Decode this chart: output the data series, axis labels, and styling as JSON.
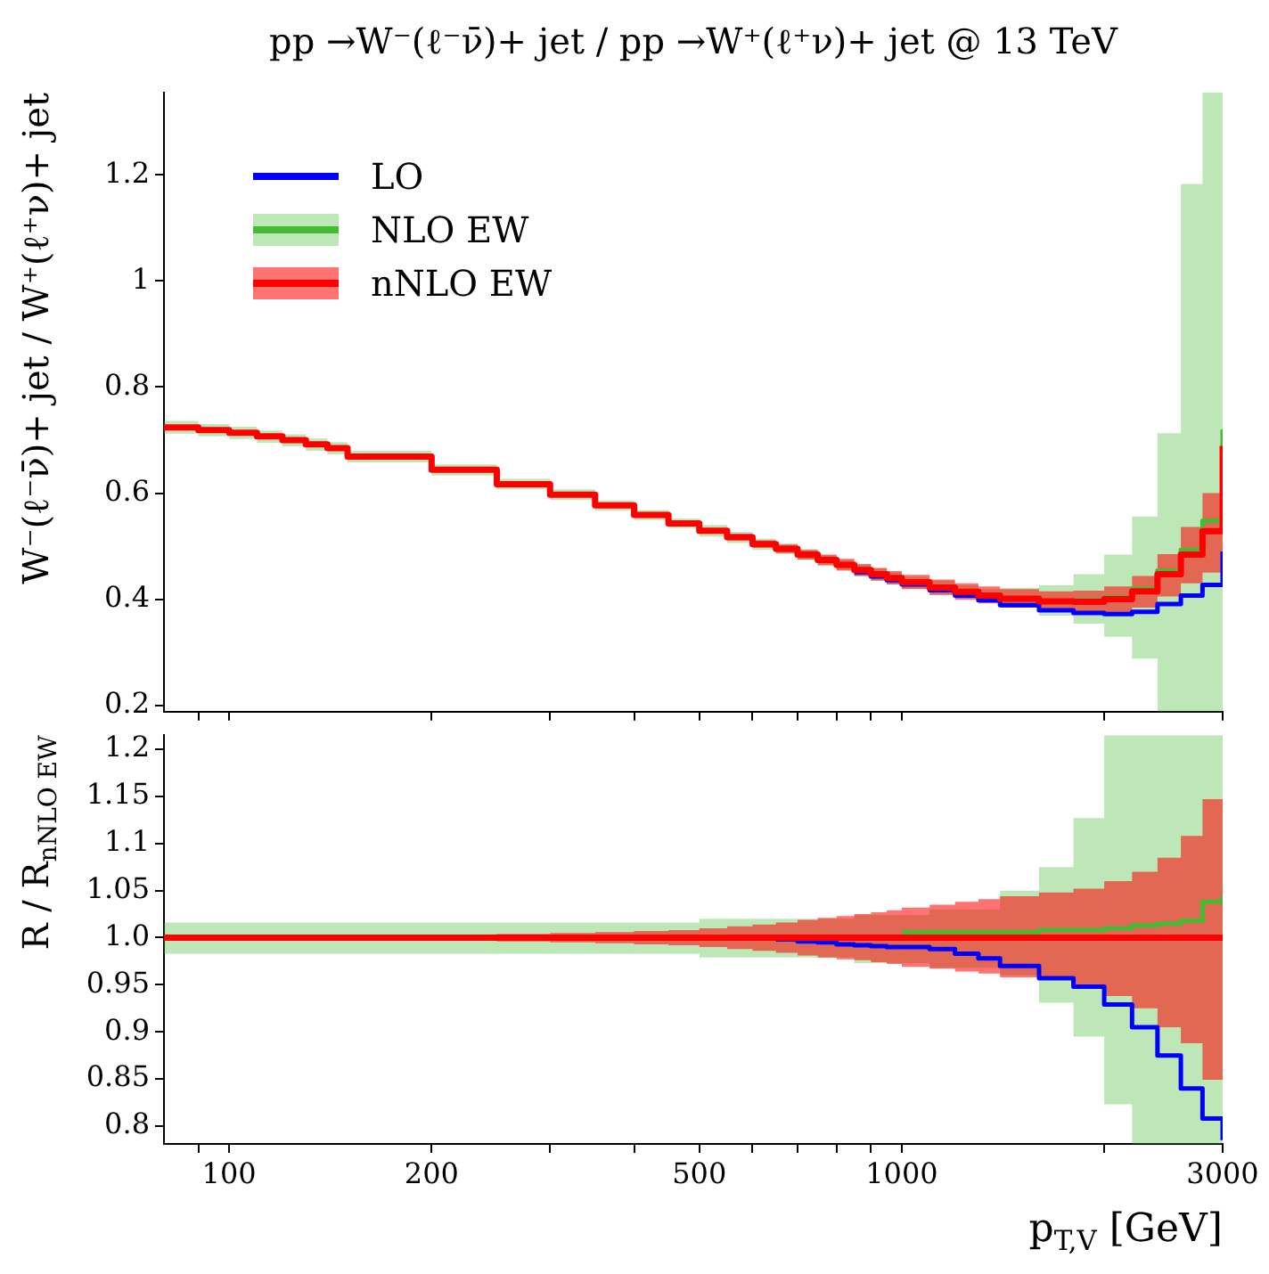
{
  "chart_data": [
    {
      "type": "step",
      "title": "pp →W⁻(ℓ⁻ν̄)+ jet / pp →W⁺(ℓ⁺ν)+ jet @ 13 TeV",
      "ylabel": "W⁻(ℓ⁻ν̄)+ jet / W⁺(ℓ⁺ν)+ jet",
      "log": "x",
      "legend": "top left",
      "tick_labels": "y",
      "x": [
        80,
        90,
        100,
        110,
        120,
        130,
        140,
        150,
        200,
        250,
        300,
        350,
        400,
        450,
        500,
        550,
        600,
        650,
        700,
        750,
        800,
        850,
        900,
        950,
        1000,
        1100,
        1200,
        1300,
        1400,
        1600,
        1800,
        2000,
        2200,
        2400,
        2600,
        2800,
        3000
      ],
      "xlim": [
        80,
        3000
      ],
      "xticks": [
        {
          "value": 90,
          "label": null
        },
        100,
        200,
        {
          "value": 300,
          "label": null
        },
        {
          "value": 400,
          "label": null
        },
        500,
        {
          "value": 600,
          "label": null
        },
        {
          "value": 700,
          "label": null
        },
        {
          "value": 800,
          "label": null
        },
        {
          "value": 900,
          "label": null
        },
        1000,
        {
          "value": 2000,
          "label": null
        },
        3000
      ],
      "ylim": [
        0.188,
        1.355
      ],
      "yticks": [
        0.2,
        0.4,
        0.6,
        0.8,
        1,
        1.2
      ],
      "series": [
        {
          "name": "LO",
          "color": "#0000ff",
          "values": [
            null,
            null,
            null,
            null,
            null,
            null,
            null,
            null,
            null,
            null,
            null,
            null,
            null,
            null,
            null,
            null,
            null,
            null,
            null,
            null,
            null,
            0.451,
            0.443,
            0.436,
            0.428,
            0.417,
            0.407,
            0.398,
            0.389,
            0.379,
            0.374,
            0.372,
            0.376,
            0.391,
            0.407,
            0.427,
            0.49
          ]
        },
        {
          "name": "NLO EW",
          "color": "#44bb33",
          "values": [
            null,
            null,
            null,
            null,
            null,
            null,
            null,
            null,
            null,
            null,
            null,
            null,
            null,
            null,
            null,
            null,
            null,
            null,
            null,
            null,
            null,
            null,
            null,
            null,
            null,
            null,
            null,
            null,
            null,
            null,
            0.398,
            0.404,
            0.42,
            0.454,
            0.493,
            0.548,
            0.72
          ],
          "lower": [
            0.712,
            0.707,
            0.702,
            0.695,
            0.688,
            0.68,
            0.673,
            0.658,
            0.633,
            0.607,
            0.587,
            0.567,
            0.549,
            0.534,
            0.518,
            0.506,
            0.493,
            0.485,
            0.474,
            0.464,
            0.455,
            0.443,
            0.435,
            0.428,
            0.42,
            0.408,
            0.401,
            0.394,
            0.385,
            0.369,
            0.354,
            0.329,
            0.288,
            0.188,
            0.188,
            0.188,
            0.188
          ],
          "upper": [
            0.736,
            0.73,
            0.725,
            0.718,
            0.711,
            0.703,
            0.696,
            0.68,
            0.654,
            0.627,
            0.607,
            0.586,
            0.568,
            0.552,
            0.54,
            0.527,
            0.514,
            0.505,
            0.494,
            0.483,
            0.474,
            0.466,
            0.458,
            0.451,
            0.442,
            0.435,
            0.426,
            0.419,
            0.421,
            0.426,
            0.447,
            0.484,
            0.556,
            0.713,
            1.183,
            1.355,
            1.355
          ]
        },
        {
          "name": "nNLO EW",
          "color": "#ff0000",
          "values": [
            0.724,
            0.719,
            0.714,
            0.707,
            0.7,
            0.692,
            0.685,
            0.669,
            0.644,
            0.617,
            0.597,
            0.577,
            0.559,
            0.543,
            0.529,
            0.517,
            0.504,
            0.495,
            0.484,
            0.474,
            0.465,
            0.455,
            0.447,
            0.44,
            0.432,
            0.422,
            0.414,
            0.407,
            0.401,
            0.396,
            0.395,
            0.4,
            0.415,
            0.447,
            0.484,
            0.528,
            0.689
          ],
          "lower": [
            0.723,
            0.718,
            0.713,
            0.706,
            0.699,
            0.691,
            0.684,
            0.668,
            0.642,
            0.615,
            0.594,
            0.574,
            0.555,
            0.539,
            0.524,
            0.511,
            0.497,
            0.487,
            0.475,
            0.464,
            0.454,
            0.444,
            0.435,
            0.428,
            0.419,
            0.408,
            0.399,
            0.392,
            0.384,
            0.378,
            0.374,
            0.375,
            0.384,
            0.405,
            0.43,
            0.45,
            0.45
          ],
          "upper": [
            0.725,
            0.72,
            0.715,
            0.708,
            0.701,
            0.693,
            0.686,
            0.67,
            0.646,
            0.619,
            0.6,
            0.58,
            0.563,
            0.547,
            0.534,
            0.523,
            0.511,
            0.503,
            0.493,
            0.484,
            0.476,
            0.466,
            0.459,
            0.453,
            0.446,
            0.437,
            0.43,
            0.424,
            0.419,
            0.415,
            0.416,
            0.424,
            0.444,
            0.485,
            0.536,
            0.6,
            0.6
          ]
        }
      ]
    },
    {
      "type": "step",
      "xlabel": "p$_{T,V}$ [GeV]",
      "ylabel": "R / R$_{nNLO EW}$",
      "log": "x",
      "x": [
        80,
        90,
        100,
        110,
        120,
        130,
        140,
        150,
        200,
        250,
        300,
        350,
        400,
        450,
        500,
        550,
        600,
        650,
        700,
        750,
        800,
        850,
        900,
        950,
        1000,
        1100,
        1200,
        1300,
        1400,
        1600,
        1800,
        2000,
        2200,
        2400,
        2600,
        2800,
        3000
      ],
      "xlim": [
        80,
        3000
      ],
      "xticks": [
        {
          "value": 90,
          "label": null
        },
        100,
        200,
        {
          "value": 300,
          "label": null
        },
        {
          "value": 400,
          "label": null
        },
        500,
        {
          "value": 600,
          "label": null
        },
        {
          "value": 700,
          "label": null
        },
        {
          "value": 800,
          "label": null
        },
        {
          "value": 900,
          "label": null
        },
        1000,
        {
          "value": 2000,
          "label": null
        },
        3000
      ],
      "ylim": [
        0.781,
        1.215
      ],
      "yticks": [
        0.8,
        0.85,
        0.9,
        0.95,
        {
          "value": 1,
          "label": "1.0"
        },
        1.05,
        1.1,
        1.15,
        1.2
      ],
      "series": [
        {
          "color": "#0000ff",
          "values": [
            null,
            null,
            null,
            null,
            null,
            null,
            null,
            null,
            null,
            null,
            null,
            null,
            null,
            null,
            null,
            null,
            null,
            0.998,
            0.996,
            0.995,
            0.993,
            0.992,
            0.991,
            0.99,
            0.99,
            0.988,
            0.983,
            0.978,
            0.97,
            0.957,
            0.948,
            0.929,
            0.905,
            0.875,
            0.84,
            0.808,
            0.785
          ]
        },
        {
          "color": "#44bb33",
          "values": [
            null,
            null,
            null,
            null,
            null,
            null,
            null,
            null,
            null,
            null,
            null,
            null,
            null,
            null,
            null,
            null,
            null,
            null,
            null,
            null,
            null,
            null,
            null,
            null,
            1.006,
            1.006,
            1.006,
            1.006,
            1.006,
            1.008,
            1.008,
            1.01,
            1.013,
            1.015,
            1.018,
            1.038,
            1.045
          ],
          "lower": [
            0.983,
            0.983,
            0.983,
            0.983,
            0.983,
            0.983,
            0.983,
            0.983,
            0.983,
            0.983,
            0.983,
            0.983,
            0.983,
            0.983,
            0.979,
            0.979,
            0.979,
            0.979,
            0.979,
            0.979,
            0.979,
            0.973,
            0.973,
            0.973,
            0.973,
            0.968,
            0.968,
            0.968,
            0.96,
            0.931,
            0.895,
            0.823,
            0.781,
            0.781,
            0.781,
            0.781,
            0.781
          ],
          "upper": [
            1.016,
            1.016,
            1.016,
            1.016,
            1.016,
            1.016,
            1.016,
            1.016,
            1.016,
            1.016,
            1.016,
            1.016,
            1.016,
            1.016,
            1.02,
            1.02,
            1.02,
            1.02,
            1.02,
            1.02,
            1.02,
            1.024,
            1.024,
            1.024,
            1.024,
            1.03,
            1.03,
            1.03,
            1.05,
            1.075,
            1.127,
            1.215,
            1.215,
            1.215,
            1.215,
            1.215,
            1.215
          ]
        },
        {
          "color": "#ff0000",
          "values": [
            1,
            1,
            1,
            1,
            1,
            1,
            1,
            1,
            1,
            1,
            1,
            1,
            1,
            1,
            1,
            1,
            1,
            1,
            1,
            1,
            1,
            1,
            1,
            1,
            1,
            1,
            1,
            1,
            1,
            1,
            1,
            1,
            1,
            1,
            1,
            1,
            1
          ],
          "lower": [
            0.998,
            0.998,
            0.998,
            0.998,
            0.998,
            0.998,
            0.998,
            0.998,
            0.997,
            0.996,
            0.995,
            0.994,
            0.993,
            0.992,
            0.99,
            0.988,
            0.986,
            0.984,
            0.981,
            0.979,
            0.977,
            0.976,
            0.974,
            0.972,
            0.969,
            0.967,
            0.964,
            0.962,
            0.958,
            0.955,
            0.948,
            0.938,
            0.925,
            0.905,
            0.888,
            0.849,
            0.849
          ],
          "upper": [
            1.002,
            1.002,
            1.002,
            1.002,
            1.002,
            1.002,
            1.002,
            1.002,
            1.003,
            1.004,
            1.005,
            1.006,
            1.007,
            1.008,
            1.01,
            1.012,
            1.014,
            1.016,
            1.019,
            1.021,
            1.023,
            1.025,
            1.027,
            1.029,
            1.032,
            1.035,
            1.038,
            1.041,
            1.044,
            1.048,
            1.052,
            1.06,
            1.07,
            1.085,
            1.108,
            1.147,
            1.147
          ]
        }
      ]
    }
  ]
}
